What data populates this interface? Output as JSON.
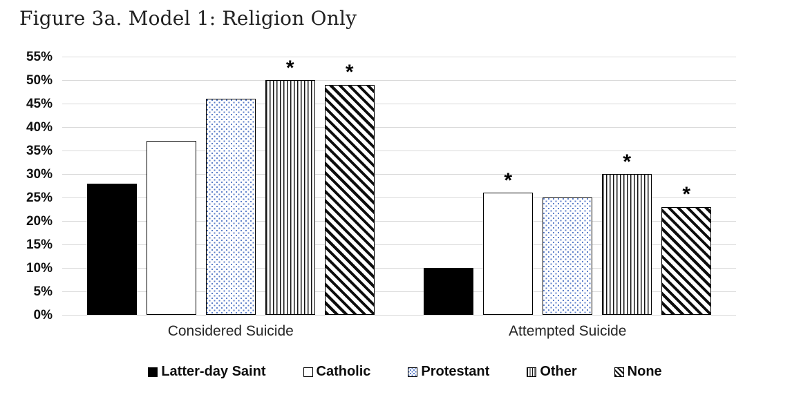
{
  "title": "Figure 3a. Model 1: Religion Only",
  "chart_data": {
    "type": "bar",
    "title": "Figure 3a. Model 1: Religion Only",
    "categories": [
      "Considered Suicide",
      "Attempted Suicide"
    ],
    "series": [
      {
        "name": "Latter-day Saint",
        "pattern": "solid-black",
        "values": [
          28,
          10
        ],
        "significant": [
          false,
          false
        ]
      },
      {
        "name": "Catholic",
        "pattern": "white",
        "values": [
          37,
          26
        ],
        "significant": [
          false,
          true
        ]
      },
      {
        "name": "Protestant",
        "pattern": "blue-dots",
        "values": [
          46,
          25
        ],
        "significant": [
          false,
          false
        ]
      },
      {
        "name": "Other",
        "pattern": "vertical-lines",
        "values": [
          50,
          30
        ],
        "significant": [
          true,
          true
        ]
      },
      {
        "name": "None",
        "pattern": "diagonal-stripes",
        "values": [
          49,
          23
        ],
        "significant": [
          true,
          true
        ]
      }
    ],
    "y_ticks": [
      "0%",
      "5%",
      "10%",
      "15%",
      "20%",
      "25%",
      "30%",
      "35%",
      "40%",
      "45%",
      "50%",
      "55%"
    ],
    "ylim": [
      0,
      55
    ],
    "xlabel": "",
    "ylabel": "",
    "significance_marker": "*",
    "grid": true,
    "legend_position": "bottom"
  },
  "colors": {
    "background": "#ffffff",
    "gridline": "#d9d9d9",
    "bar_border": "#000000",
    "dot_fill": "#5b7ec9",
    "text": "#111111"
  }
}
